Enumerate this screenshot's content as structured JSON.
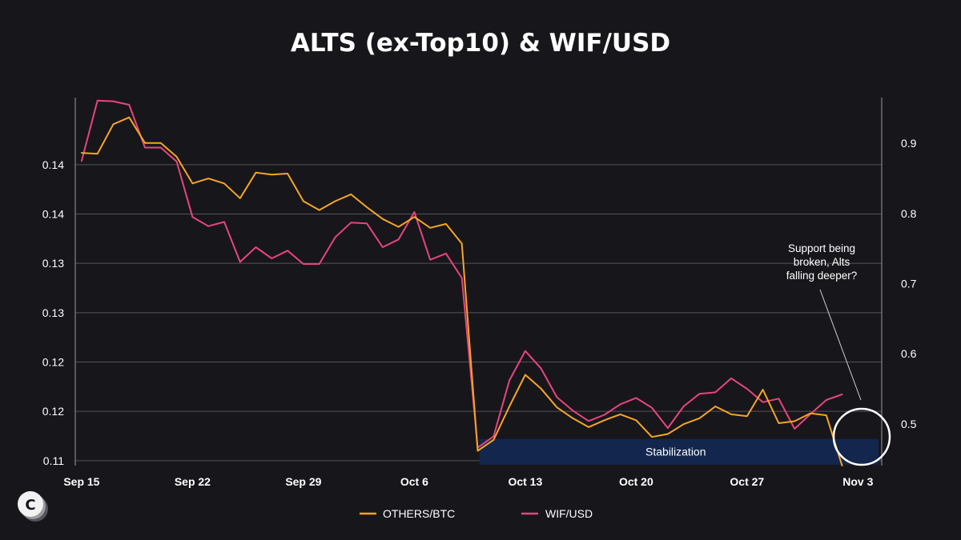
{
  "colors": {
    "background": "#17161b",
    "others_line": "#f5a623",
    "wif_line": "#e8457c",
    "grid": "#54535a",
    "stabilization_fill": "#13264d"
  },
  "brand": {
    "logo_icon": "c-logo-icon"
  },
  "chart_data": {
    "type": "line",
    "title": "ALTS (ex-Top10) & WIF/USD",
    "x_ticks": [
      {
        "label": "Sep 15",
        "day": 0
      },
      {
        "label": "Sep 22",
        "day": 7
      },
      {
        "label": "Sep 29",
        "day": 14
      },
      {
        "label": "Oct 6",
        "day": 21
      },
      {
        "label": "Oct 13",
        "day": 28
      },
      {
        "label": "Oct 20",
        "day": 35
      },
      {
        "label": "Oct 27",
        "day": 42
      },
      {
        "label": "Nov 3",
        "day": 49
      }
    ],
    "x_range": [
      -0.4,
      50.5
    ],
    "y_left": {
      "range": [
        0.1095,
        0.1468
      ],
      "ticks": [
        {
          "value": 0.11,
          "label": "0.11"
        },
        {
          "value": 0.115,
          "label": "0.12"
        },
        {
          "value": 0.12,
          "label": "0.12"
        },
        {
          "value": 0.125,
          "label": "0.13"
        },
        {
          "value": 0.13,
          "label": "0.13"
        },
        {
          "value": 0.135,
          "label": "0.14"
        },
        {
          "value": 0.14,
          "label": "0.14"
        }
      ]
    },
    "y_right": {
      "range": [
        0.4405,
        0.9653
      ],
      "ticks": [
        {
          "value": 0.5,
          "label": "0.5"
        },
        {
          "value": 0.6,
          "label": "0.6"
        },
        {
          "value": 0.7,
          "label": "0.7"
        },
        {
          "value": 0.8,
          "label": "0.8"
        },
        {
          "value": 0.9,
          "label": "0.9"
        }
      ]
    },
    "series": [
      {
        "name": "OTHERS/BTC",
        "axis": "left",
        "x": [
          0,
          1,
          2,
          3,
          4,
          5,
          6,
          7,
          8,
          9,
          10,
          11,
          12,
          13,
          14,
          15,
          16,
          17,
          18,
          19,
          20,
          21,
          22,
          23,
          24,
          25,
          26,
          27,
          28,
          29,
          30,
          31,
          32,
          33,
          34,
          35,
          36,
          37,
          38,
          39,
          40,
          41,
          42,
          43,
          44,
          45,
          46,
          47,
          48,
          49
        ],
        "values": [
          0.1412,
          0.1411,
          0.1441,
          0.1448,
          0.1422,
          0.1422,
          0.1408,
          0.1381,
          0.1386,
          0.1381,
          0.1366,
          0.1392,
          0.139,
          0.1391,
          0.1363,
          0.1354,
          0.1363,
          0.137,
          0.1357,
          0.1345,
          0.1337,
          0.1347,
          0.1336,
          0.134,
          0.132,
          0.111,
          0.1121,
          0.1155,
          0.1187,
          0.1173,
          0.1154,
          0.1143,
          0.1134,
          0.1141,
          0.1147,
          0.1141,
          0.1124,
          0.1127,
          0.1137,
          0.1143,
          0.1155,
          0.1147,
          0.1145,
          0.1172,
          0.1138,
          0.114,
          0.1148,
          0.1146,
          0.1095,
          null
        ]
      },
      {
        "name": "WIF/USD",
        "axis": "right",
        "x": [
          0,
          1,
          2,
          3,
          4,
          5,
          6,
          7,
          8,
          9,
          10,
          11,
          12,
          13,
          14,
          15,
          16,
          17,
          18,
          19,
          20,
          21,
          22,
          23,
          24,
          25,
          26,
          27,
          28,
          29,
          30,
          31,
          32,
          33,
          34,
          35,
          36,
          37,
          38,
          39,
          40,
          41,
          42,
          43,
          44,
          45,
          46,
          47,
          48,
          49
        ],
        "values": [
          0.875,
          0.961,
          0.96,
          0.955,
          0.894,
          0.894,
          0.874,
          0.795,
          0.782,
          0.788,
          0.731,
          0.752,
          0.736,
          0.747,
          0.728,
          0.728,
          0.766,
          0.787,
          0.786,
          0.752,
          0.763,
          0.802,
          0.734,
          0.743,
          0.708,
          0.466,
          0.482,
          0.562,
          0.604,
          0.579,
          0.538,
          0.519,
          0.504,
          0.513,
          0.528,
          0.537,
          0.523,
          0.494,
          0.525,
          0.543,
          0.545,
          0.565,
          0.55,
          0.531,
          0.536,
          0.493,
          0.514,
          0.534,
          0.542,
          null
        ]
      }
    ],
    "annotations": {
      "stabilization": {
        "label": "Stabilization",
        "x_range": [
          25.1,
          50.3
        ],
        "y_range": [
          0.1096,
          0.1122
        ]
      },
      "callout": {
        "lines": [
          "Support being",
          "broken, Alts",
          "falling deeper?"
        ],
        "target_day": 48.5
      }
    },
    "legend": {
      "position": "bottom-center",
      "items": [
        "OTHERS/BTC",
        "WIF/USD"
      ]
    }
  }
}
